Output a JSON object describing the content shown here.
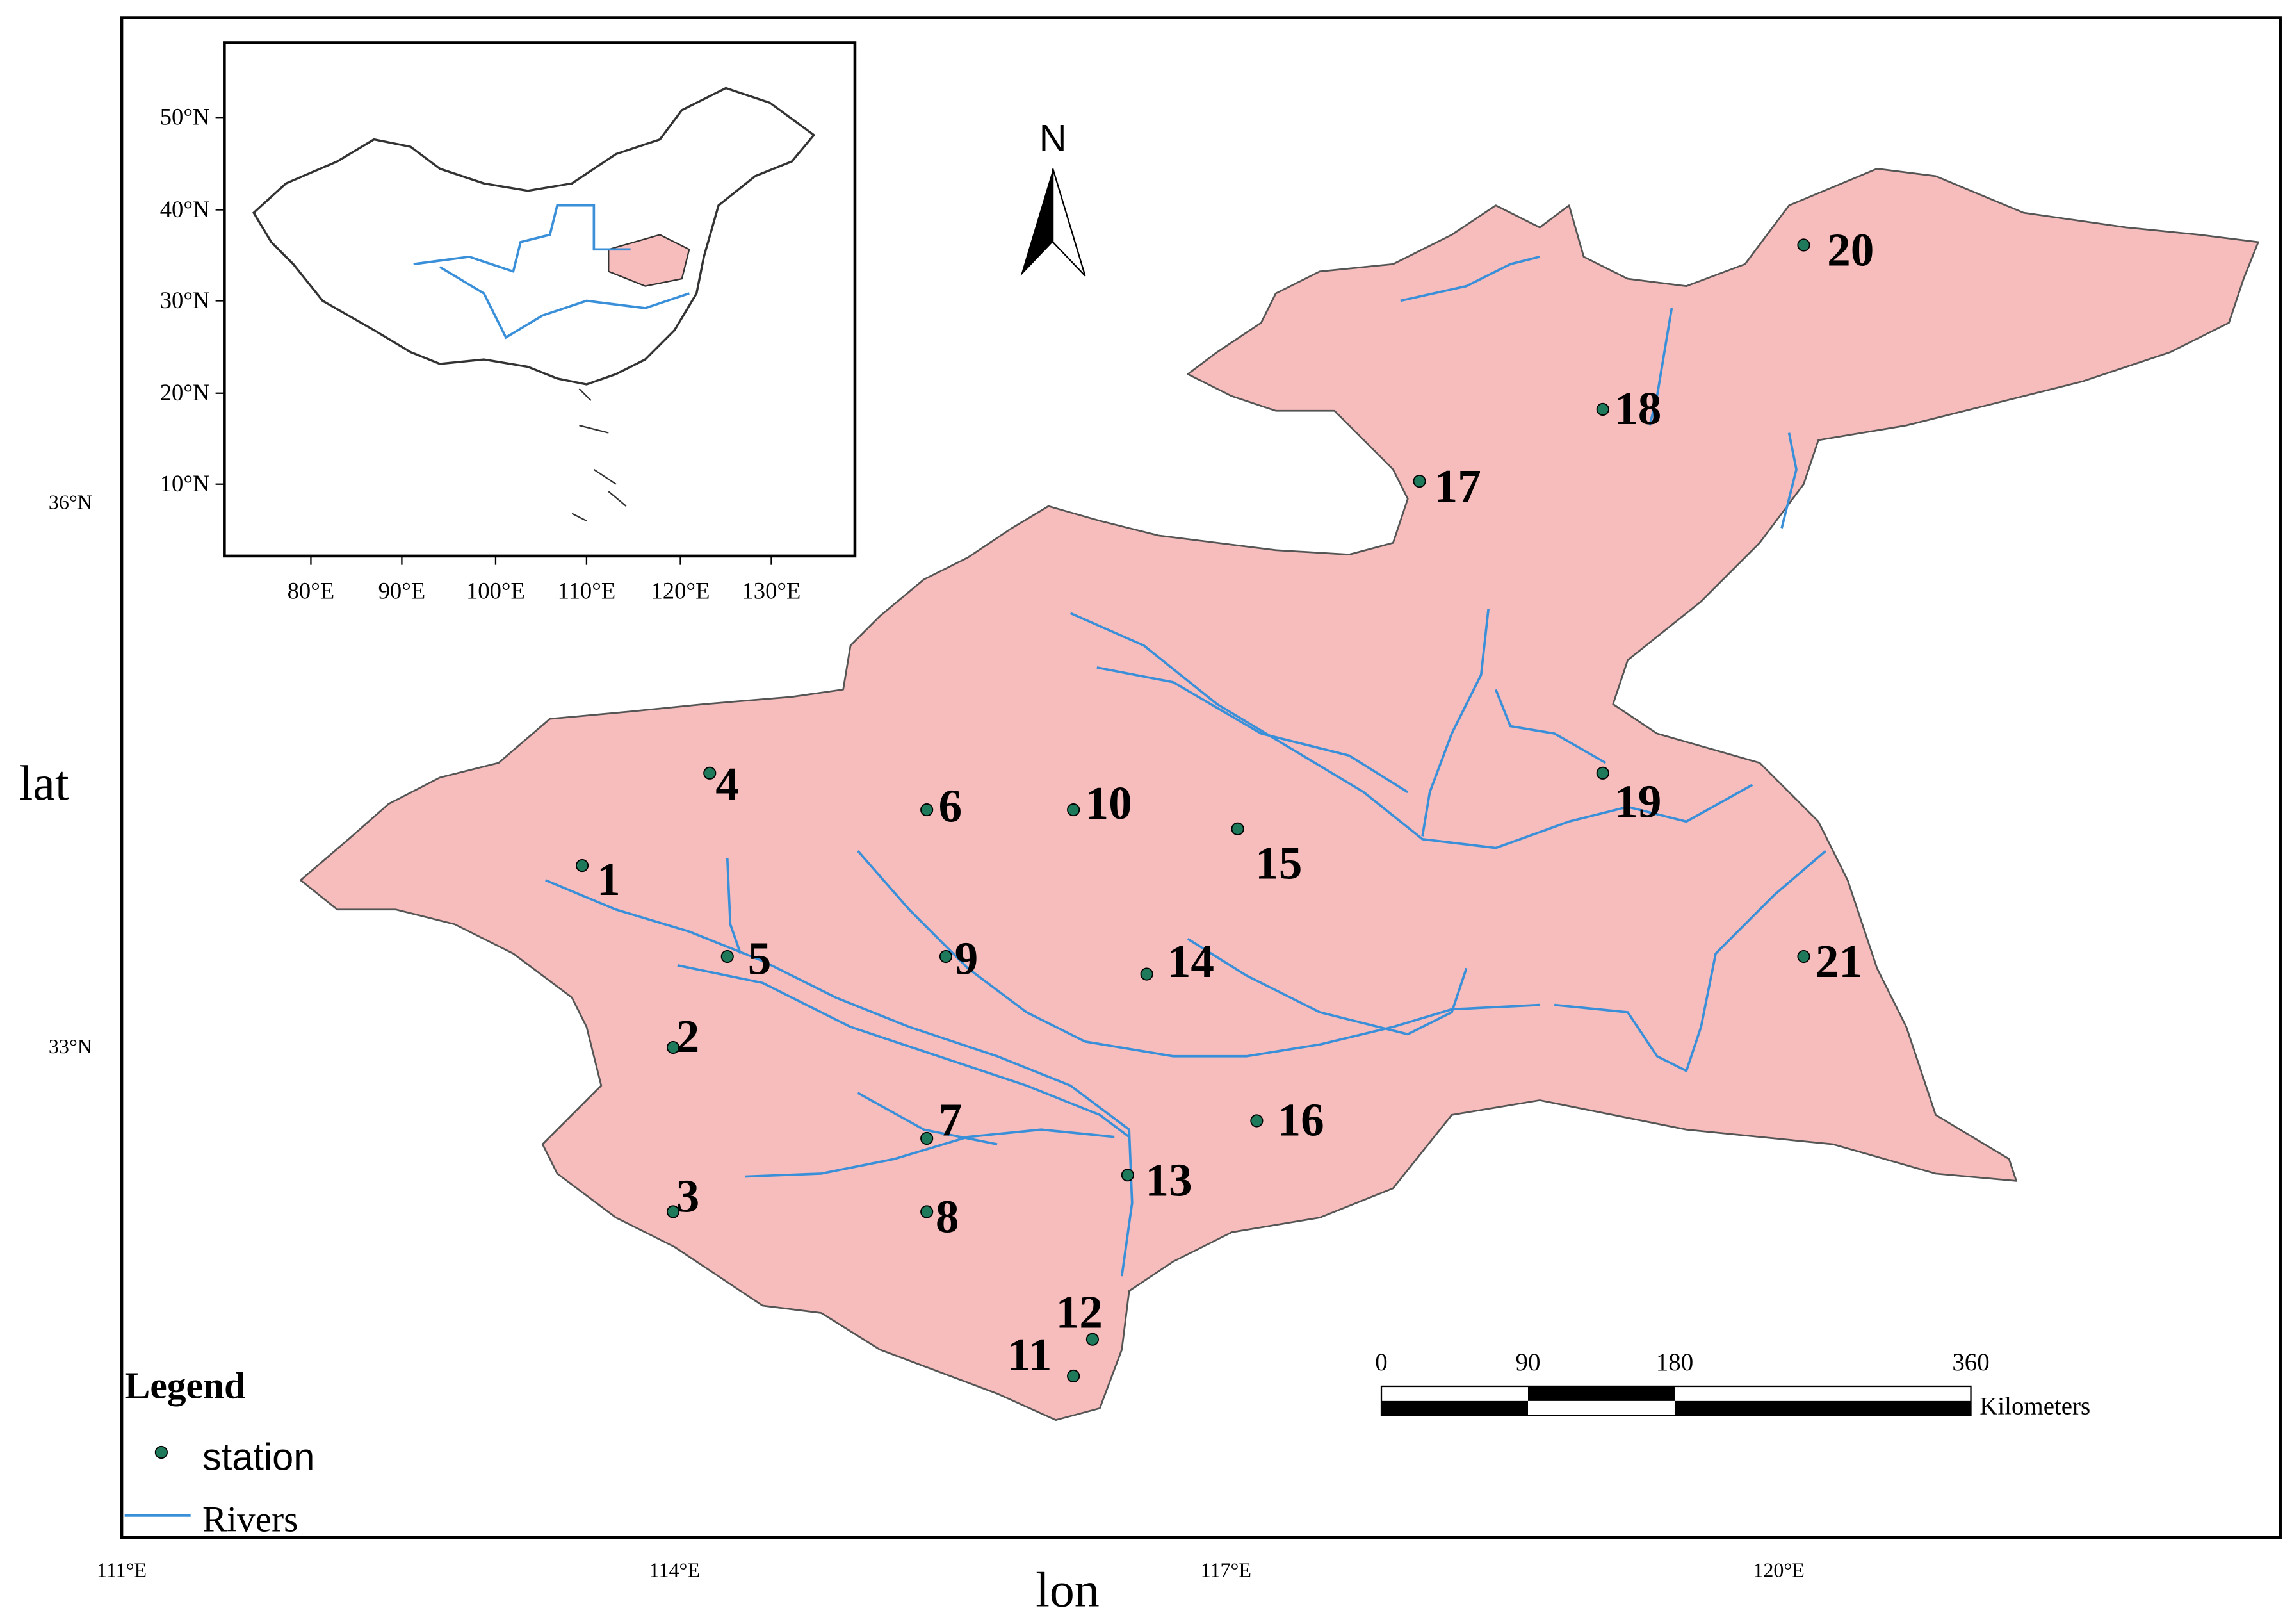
{
  "map": {
    "axis_labels": {
      "x": "lon",
      "y": "lat"
    },
    "x_ticks": [
      "111°E",
      "114°E",
      "117°E",
      "120°E"
    ],
    "y_ticks": [
      "33°N",
      "36°N"
    ],
    "inset": {
      "x_ticks": [
        "80°E",
        "90°E",
        "100°E",
        "110°E",
        "120°E",
        "130°E"
      ],
      "y_ticks": [
        "50°N",
        "40°N",
        "30°N",
        "20°N",
        "10°N"
      ]
    },
    "north": "N",
    "stations": [
      "1",
      "2",
      "3",
      "4",
      "5",
      "6",
      "7",
      "8",
      "9",
      "10",
      "11",
      "12",
      "13",
      "14",
      "15",
      "16",
      "17",
      "18",
      "19",
      "20",
      "21"
    ],
    "scale_bar": {
      "labels": [
        "0",
        "90",
        "180",
        "360"
      ],
      "unit": "Kilometers"
    },
    "legend": {
      "title": "Legend",
      "items": [
        "station",
        "Rivers"
      ]
    }
  }
}
